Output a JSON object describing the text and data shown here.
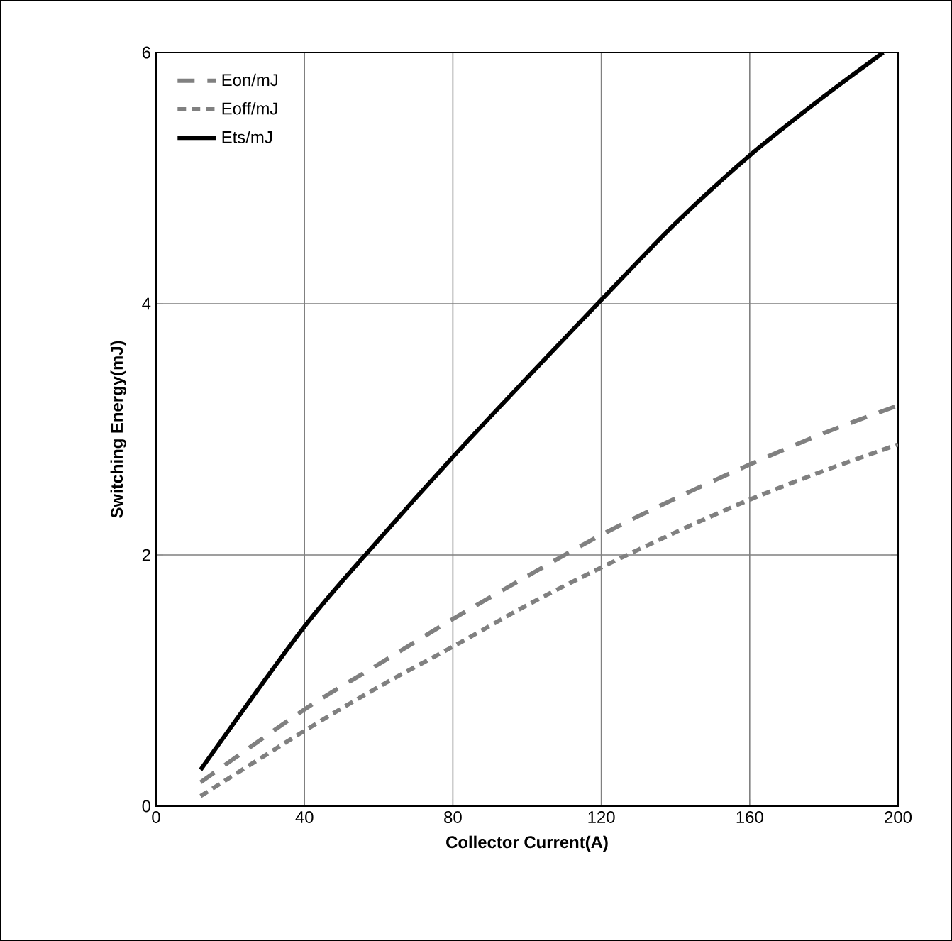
{
  "chart_data": {
    "type": "line",
    "xlabel": "Collector Current(A)",
    "ylabel": "Switching Energy(mJ)",
    "xlim": [
      0,
      200
    ],
    "ylim": [
      0,
      6
    ],
    "xticks": [
      0,
      40,
      80,
      120,
      160,
      200
    ],
    "yticks": [
      0,
      2,
      4,
      6
    ],
    "grid": true,
    "legend": "top left",
    "series": [
      {
        "name": "Eon/mJ",
        "color": "#808080",
        "line_style": "dashed",
        "x": [
          12,
          40,
          60,
          80,
          100,
          120,
          140,
          160,
          180,
          200
        ],
        "values": [
          0.19,
          0.77,
          1.13,
          1.49,
          1.83,
          2.16,
          2.45,
          2.72,
          2.97,
          3.19
        ]
      },
      {
        "name": "Eoff/mJ",
        "color": "#808080",
        "line_style": "dotted",
        "x": [
          12,
          40,
          60,
          80,
          100,
          120,
          140,
          160,
          180,
          200
        ],
        "values": [
          0.08,
          0.6,
          0.95,
          1.27,
          1.6,
          1.9,
          2.18,
          2.44,
          2.67,
          2.88
        ]
      },
      {
        "name": "Ets/mJ",
        "color": "#000000",
        "line_style": "solid",
        "x": [
          12,
          40,
          60,
          80,
          100,
          120,
          140,
          160,
          180,
          196
        ],
        "values": [
          0.29,
          1.43,
          2.12,
          2.78,
          3.41,
          4.03,
          4.64,
          5.18,
          5.65,
          6.0
        ]
      }
    ]
  }
}
